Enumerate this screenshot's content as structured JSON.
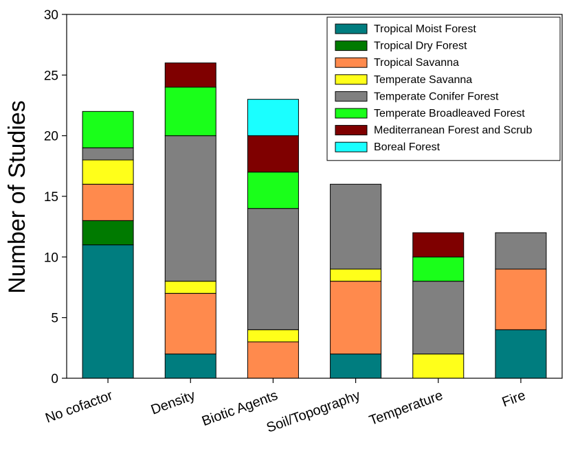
{
  "chart_data": {
    "type": "bar",
    "stacked": true,
    "title": "",
    "xlabel": "",
    "ylabel": "Number of Studies",
    "ylim": [
      0,
      30
    ],
    "yticks": [
      0,
      5,
      10,
      15,
      20,
      25,
      30
    ],
    "grid": false,
    "legend_position": "top-right",
    "categories": [
      "No cofactor",
      "Density",
      "Biotic Agents",
      "Soil/Topography",
      "Temperature",
      "Fire"
    ],
    "series": [
      {
        "name": "Tropical Moist Forest",
        "color": "#007d7f",
        "values": [
          11,
          2,
          0,
          2,
          0,
          4
        ]
      },
      {
        "name": "Tropical Dry Forest",
        "color": "#007a00",
        "values": [
          2,
          0,
          0,
          0,
          0,
          0
        ]
      },
      {
        "name": "Tropical Savanna",
        "color": "#ff8a4d",
        "values": [
          3,
          5,
          3,
          6,
          0,
          5
        ]
      },
      {
        "name": "Temperate Savanna",
        "color": "#ffff1a",
        "values": [
          2,
          1,
          1,
          1,
          2,
          0
        ]
      },
      {
        "name": "Temperate Conifer Forest",
        "color": "#808080",
        "values": [
          1,
          12,
          10,
          7,
          6,
          3
        ]
      },
      {
        "name": "Temperate Broadleaved Forest",
        "color": "#1aff1a",
        "values": [
          3,
          4,
          3,
          0,
          2,
          0
        ]
      },
      {
        "name": "Mediterranean Forest and Scrub",
        "color": "#7f0000",
        "values": [
          0,
          2,
          3,
          0,
          2,
          0
        ]
      },
      {
        "name": "Boreal Forest",
        "color": "#1affff",
        "values": [
          0,
          0,
          3,
          0,
          0,
          0
        ]
      }
    ]
  }
}
